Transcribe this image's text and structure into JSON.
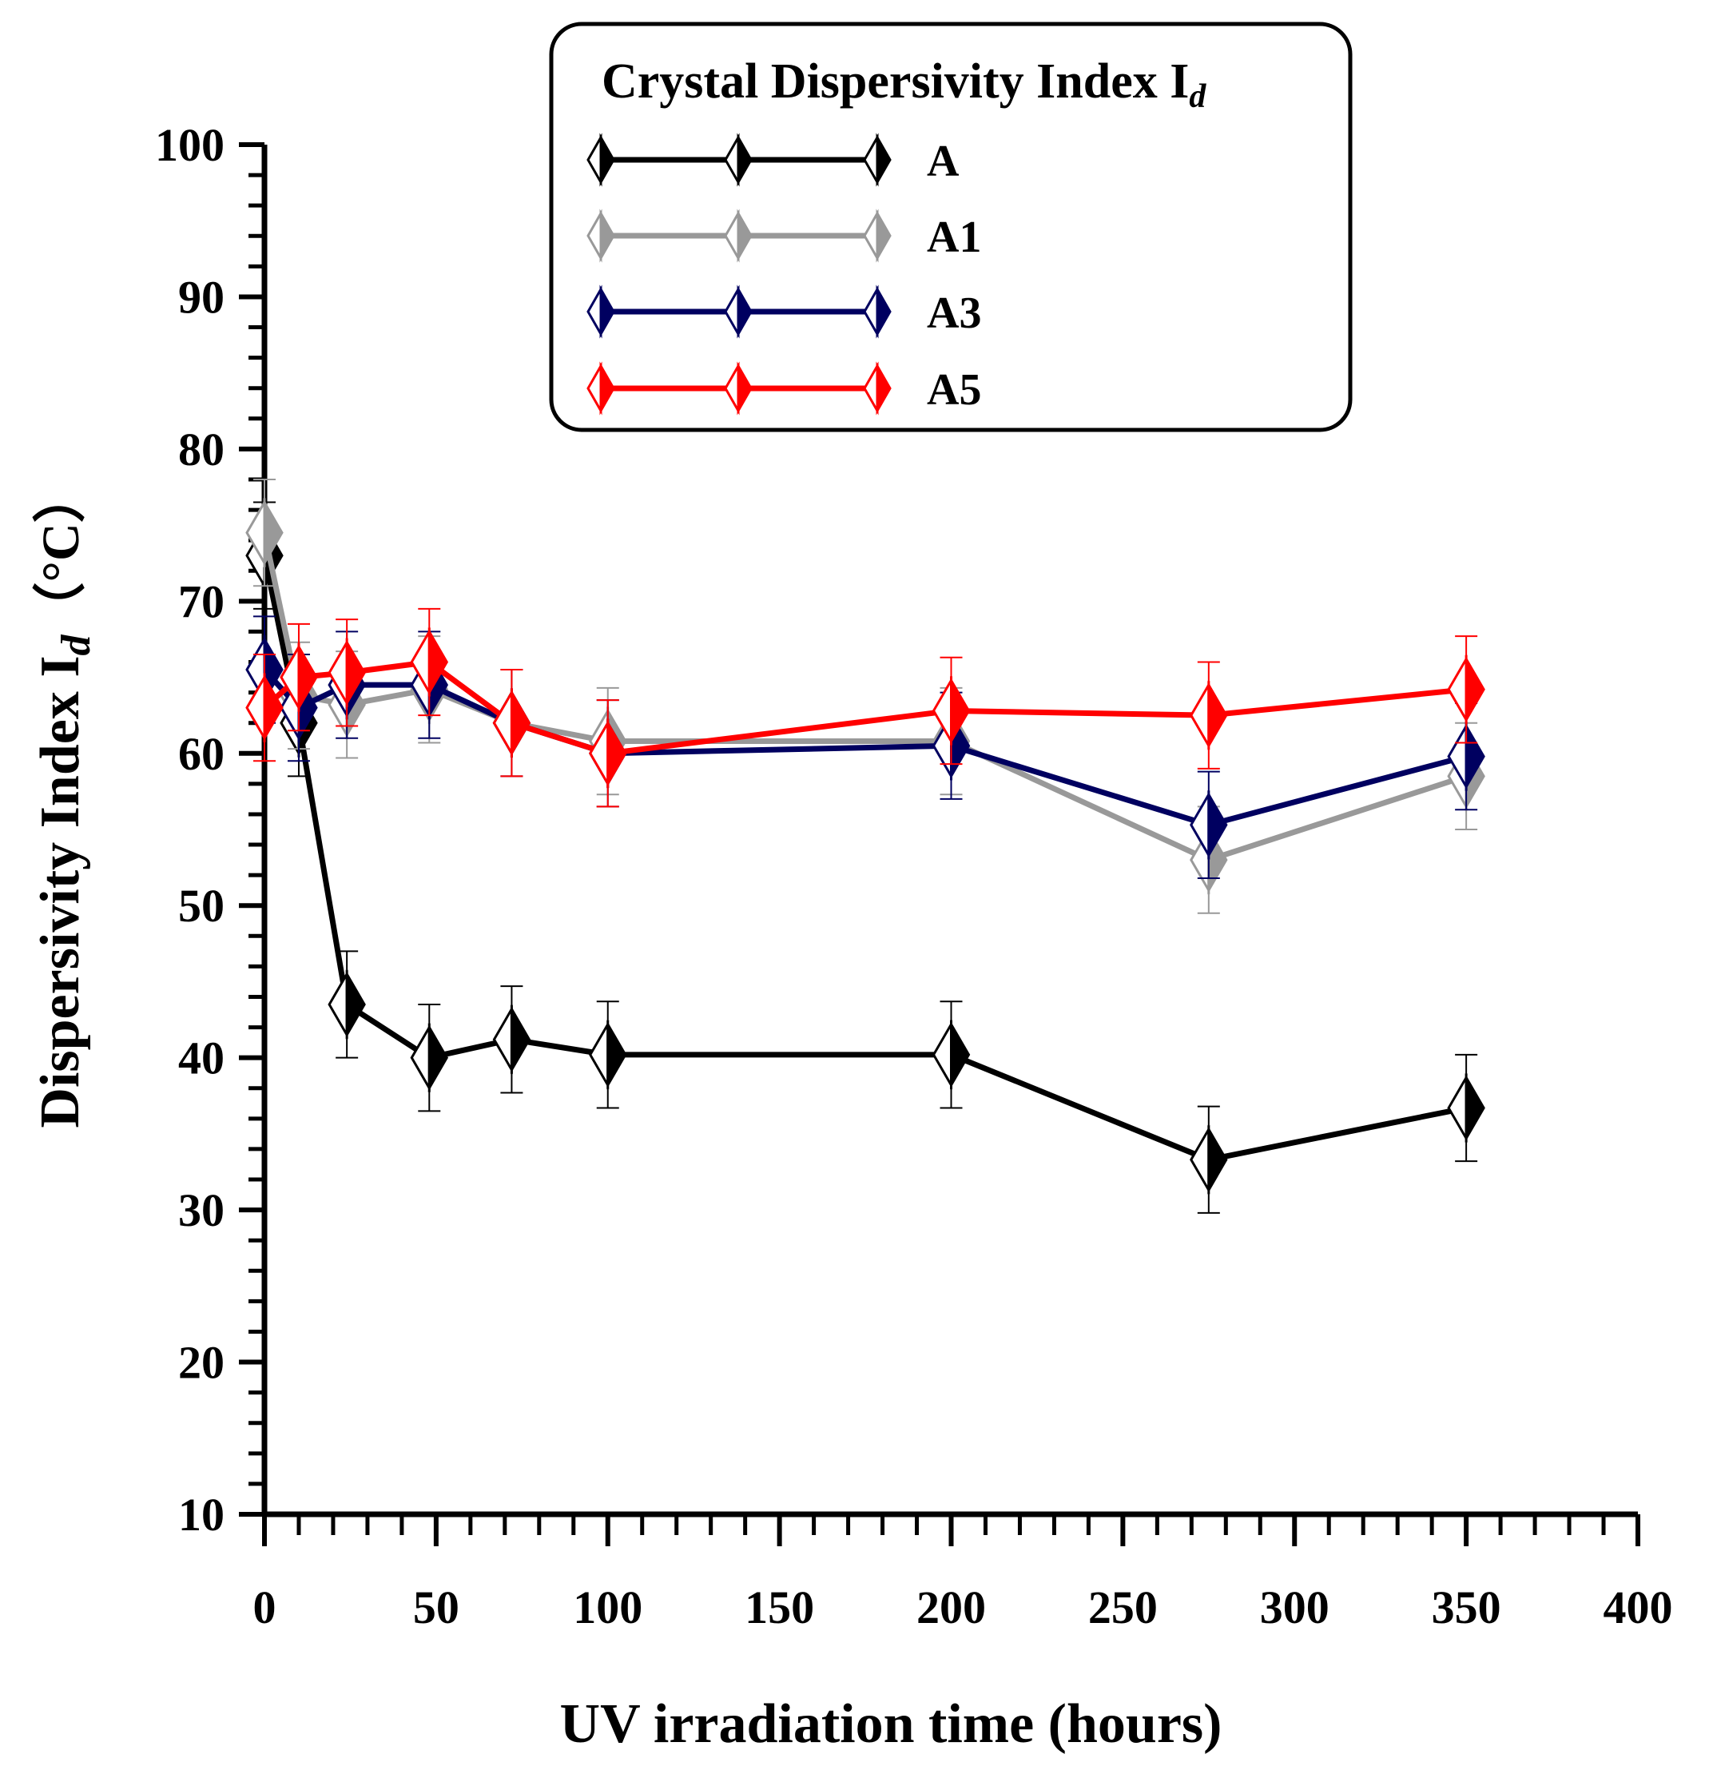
{
  "chart_data": {
    "type": "line",
    "legend_title_main": "Crystal Dispersivity Index I",
    "legend_title_sub": "d",
    "xlabel": "UV irradiation time  (hours)",
    "ylabel_main": "Dispersivity Index I",
    "ylabel_sub": "d",
    "ylabel_unit": "（°C）",
    "xlim": [
      0,
      400
    ],
    "ylim": [
      10,
      100
    ],
    "x_ticks": [
      0,
      50,
      100,
      150,
      200,
      250,
      300,
      350,
      400
    ],
    "y_ticks": [
      10,
      20,
      30,
      40,
      50,
      60,
      70,
      80,
      90,
      100
    ],
    "legend_position": "top-center",
    "x": [
      0,
      10,
      24,
      48,
      72,
      100,
      200,
      275,
      350
    ],
    "series": [
      {
        "name": "A",
        "color": "#000000",
        "values": [
          73,
          62,
          43.5,
          40,
          41.2,
          40.2,
          40.2,
          33.3,
          36.7
        ],
        "error": 3.5
      },
      {
        "name": "A1",
        "color": "#999999",
        "values": [
          74.5,
          63.8,
          63.2,
          64.2,
          62,
          60.8,
          60.8,
          53,
          58.5
        ],
        "error": 3.5
      },
      {
        "name": "A3",
        "color": "#000060",
        "values": [
          65.5,
          63,
          64.5,
          64.5,
          62,
          60,
          60.5,
          55.3,
          59.8
        ],
        "error": 3.5
      },
      {
        "name": "A5",
        "color": "#ff0000",
        "values": [
          63,
          65,
          65.3,
          66,
          62,
          60,
          62.8,
          62.5,
          64.2
        ],
        "error": 3.5
      }
    ]
  }
}
